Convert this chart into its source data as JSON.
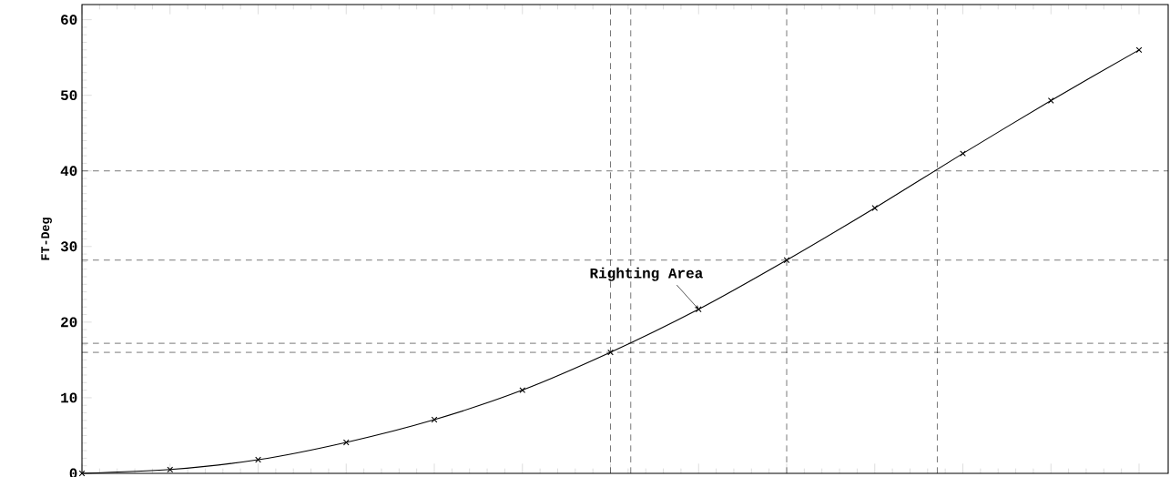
{
  "chart_data": {
    "type": "line",
    "ylabel": "FT-Deg",
    "categories": [
      null,
      null,
      null,
      null,
      null,
      null,
      null,
      null,
      null,
      null,
      null,
      null,
      null
    ],
    "series": [
      {
        "color": "#000000",
        "values": [
          0,
          0.5,
          1.8,
          4.1,
          7.1,
          11.0,
          16.0,
          21.7,
          28.2,
          35.1,
          42.3,
          49.3,
          56.0
        ]
      }
    ],
    "ylim": [
      0,
      62
    ],
    "yticks": [
      0,
      10,
      20,
      30,
      40,
      50,
      60
    ],
    "marker": "cross",
    "line_style": "solid",
    "tick_labels": "y",
    "grid": false,
    "ref_lines": [
      {
        "axis": "y",
        "value": 40,
        "line_style": "dashed",
        "color": "#000000"
      },
      {
        "axis": "y",
        "value": 28.2,
        "line_style": "dashed",
        "color": "#000000"
      },
      {
        "axis": "y",
        "value": 17.2,
        "line_style": "dashed",
        "color": "#000000"
      },
      {
        "axis": "y",
        "value": 16.0,
        "line_style": "dashed",
        "color": "#000000"
      }
    ],
    "annotations": [
      "Righting Area"
    ]
  }
}
